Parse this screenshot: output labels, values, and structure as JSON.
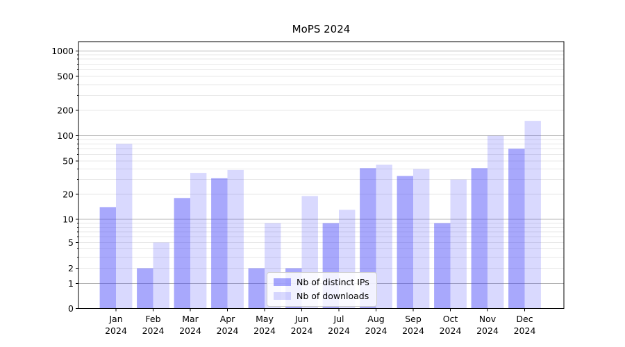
{
  "chart_data": {
    "type": "bar",
    "title": "MoPS 2024",
    "categories": [
      "Jan",
      "Feb",
      "Mar",
      "Apr",
      "May",
      "Jun",
      "Jul",
      "Aug",
      "Sep",
      "Oct",
      "Nov",
      "Dec"
    ],
    "category_sublabel": "2024",
    "series": [
      {
        "name": "Nb of distinct IPs",
        "color": "rgba(64,64,248,0.455)",
        "values": [
          14,
          2,
          18,
          31,
          2,
          2,
          9,
          41,
          33,
          9,
          41,
          70
        ]
      },
      {
        "name": "Nb of downloads",
        "color": "rgba(64,64,248,0.20)",
        "values": [
          80,
          5,
          36,
          39,
          9,
          19,
          13,
          45,
          40,
          30,
          100,
          150
        ]
      }
    ],
    "xlabel": "",
    "ylabel": "",
    "yscale": "symlog",
    "yticks": [
      0,
      1,
      2,
      5,
      10,
      20,
      50,
      100,
      200,
      500,
      1000
    ],
    "ylim": [
      0,
      1280
    ],
    "grid": {
      "major": true,
      "minor": true,
      "major_color": "#b4b4b4",
      "minor_color": "#e7e7e7"
    },
    "legend_position": "lower center",
    "colors": {
      "axis": "#000000",
      "tick_text": "#000000",
      "background": "#ffffff"
    }
  }
}
